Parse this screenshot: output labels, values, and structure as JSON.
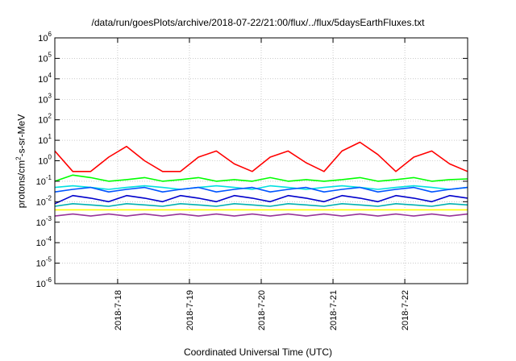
{
  "chart_data": {
    "type": "line",
    "title": "/data/run/goesPlots/archive/2018-07-22/21:00/flux/../flux/5daysEarthFluxes.txt",
    "xlabel": "Coordinated Universal Time (UTC)",
    "ylabel_parts": {
      "pre": "protons/cm",
      "sup": "2",
      "post": "-s-sr-MeV"
    },
    "y_scale": "log",
    "ylim": [
      1e-06,
      1000000.0
    ],
    "xlim": [
      "2018-07-17 03:00",
      "2018-07-22 21:00"
    ],
    "x_ticks": [
      "2018-7-18",
      "2018-7-19",
      "2018-7-20",
      "2018-7-21",
      "2018-7-22"
    ],
    "y_ticks": [
      {
        "base": "10",
        "exp": "-6"
      },
      {
        "base": "10",
        "exp": "-5"
      },
      {
        "base": "10",
        "exp": "-4"
      },
      {
        "base": "10",
        "exp": "-3"
      },
      {
        "base": "10",
        "exp": "-2"
      },
      {
        "base": "10",
        "exp": "-1"
      },
      {
        "base": "10",
        "exp": "0"
      },
      {
        "base": "10",
        "exp": "1"
      },
      {
        "base": "10",
        "exp": "2"
      },
      {
        "base": "10",
        "exp": "3"
      },
      {
        "base": "10",
        "exp": "4"
      },
      {
        "base": "10",
        "exp": "5"
      },
      {
        "base": "10",
        "exp": "6"
      }
    ],
    "grid": true,
    "x": [
      "2018-07-17 03:00",
      "2018-07-17 09:00",
      "2018-07-17 15:00",
      "2018-07-17 21:00",
      "2018-07-18 03:00",
      "2018-07-18 09:00",
      "2018-07-18 15:00",
      "2018-07-18 21:00",
      "2018-07-19 03:00",
      "2018-07-19 09:00",
      "2018-07-19 15:00",
      "2018-07-19 21:00",
      "2018-07-20 03:00",
      "2018-07-20 09:00",
      "2018-07-20 15:00",
      "2018-07-20 21:00",
      "2018-07-21 03:00",
      "2018-07-21 09:00",
      "2018-07-21 15:00",
      "2018-07-21 21:00",
      "2018-07-22 03:00",
      "2018-07-22 09:00",
      "2018-07-22 15:00",
      "2018-07-22 21:00"
    ],
    "series": [
      {
        "color": "#ff0000",
        "values": [
          3,
          0.3,
          0.3,
          1.5,
          5,
          1,
          0.3,
          0.3,
          1.5,
          3,
          0.7,
          0.3,
          1.5,
          3,
          0.8,
          0.3,
          3,
          8,
          2,
          0.3,
          1.5,
          3,
          0.7,
          0.3
        ]
      },
      {
        "color": "#00ff00",
        "values": [
          0.1,
          0.2,
          0.15,
          0.1,
          0.12,
          0.15,
          0.1,
          0.12,
          0.15,
          0.1,
          0.12,
          0.1,
          0.15,
          0.1,
          0.12,
          0.1,
          0.12,
          0.15,
          0.1,
          0.12,
          0.15,
          0.1,
          0.12,
          0.13
        ]
      },
      {
        "color": "#00e0e0",
        "values": [
          0.05,
          0.06,
          0.05,
          0.04,
          0.05,
          0.06,
          0.05,
          0.04,
          0.05,
          0.06,
          0.05,
          0.04,
          0.06,
          0.05,
          0.04,
          0.05,
          0.06,
          0.05,
          0.04,
          0.05,
          0.06,
          0.05,
          0.04,
          0.05
        ]
      },
      {
        "color": "#0055ff",
        "values": [
          0.03,
          0.04,
          0.05,
          0.03,
          0.04,
          0.05,
          0.03,
          0.04,
          0.05,
          0.03,
          0.04,
          0.05,
          0.03,
          0.04,
          0.05,
          0.03,
          0.04,
          0.05,
          0.03,
          0.04,
          0.05,
          0.03,
          0.04,
          0.05
        ]
      },
      {
        "color": "#0000cc",
        "values": [
          0.008,
          0.02,
          0.015,
          0.01,
          0.02,
          0.015,
          0.01,
          0.02,
          0.015,
          0.01,
          0.02,
          0.015,
          0.01,
          0.02,
          0.015,
          0.01,
          0.02,
          0.015,
          0.01,
          0.02,
          0.015,
          0.01,
          0.02,
          0.015
        ]
      },
      {
        "color": "#00b0b0",
        "values": [
          0.006,
          0.008,
          0.007,
          0.006,
          0.008,
          0.007,
          0.006,
          0.008,
          0.007,
          0.006,
          0.008,
          0.007,
          0.006,
          0.008,
          0.007,
          0.006,
          0.008,
          0.007,
          0.006,
          0.008,
          0.007,
          0.006,
          0.008,
          0.007
        ]
      },
      {
        "color": "#ffff00",
        "values": [
          0.004,
          0.004,
          0.004,
          0.004,
          0.004,
          0.004,
          0.004,
          0.004,
          0.004,
          0.004,
          0.004,
          0.004,
          0.004,
          0.004,
          0.004,
          0.004,
          0.004,
          0.004,
          0.004,
          0.004,
          0.004,
          0.004,
          0.004,
          0.004
        ]
      },
      {
        "color": "#993399",
        "values": [
          0.002,
          0.0025,
          0.002,
          0.0025,
          0.002,
          0.0025,
          0.002,
          0.0025,
          0.002,
          0.0025,
          0.002,
          0.0025,
          0.002,
          0.0025,
          0.002,
          0.0025,
          0.002,
          0.0025,
          0.002,
          0.0025,
          0.002,
          0.0025,
          0.002,
          0.0025
        ]
      }
    ]
  }
}
